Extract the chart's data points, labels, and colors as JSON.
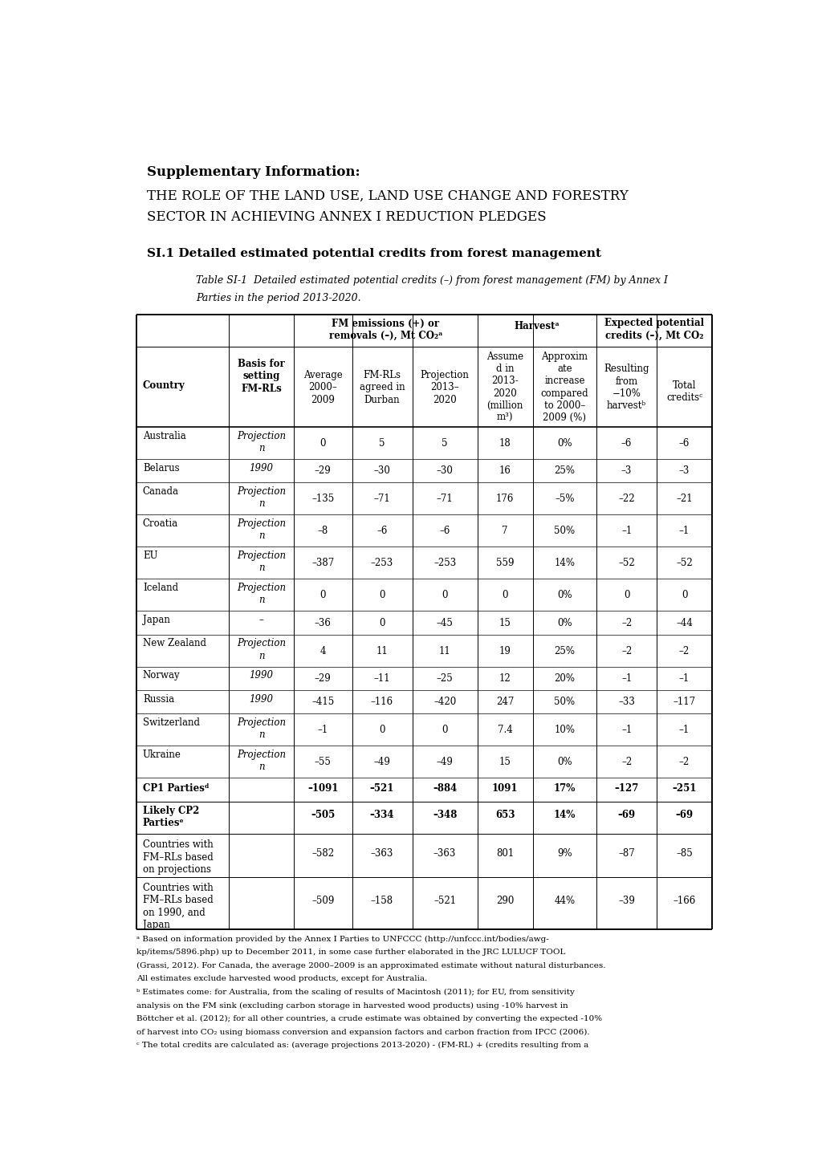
{
  "title_bold": "Supplementary Information:",
  "title_normal": "THE ROLE OF THE LAND USE, LAND USE CHANGE AND FORESTRY\nSECTOR IN ACHIEVING ANNEX I REDUCTION PLEDGES",
  "section_title": "SI.1 Detailed estimated potential credits from forest management",
  "table_caption_line1": "Table SI-1  Detailed estimated potential credits (–) from forest management (FM) by Annex I",
  "table_caption_line2": "Parties in the period 2013-2020.",
  "footnotes": [
    "ᵃ Based on information provided by the Annex I Parties to UNFCCC (http://unfccc.int/bodies/awg-",
    "kp/items/5896.php) up to December 2011, in some case further elaborated in the JRC LULUCF TOOL",
    "(Grassi, 2012). For Canada, the average 2000–2009 is an approximated estimate without natural disturbances.",
    "All estimates exclude harvested wood products, except for Australia.",
    "ᵇ Estimates come: for Australia, from the scaling of results of Macintosh (2011); for EU, from sensitivity",
    "analysis on the FM sink (excluding carbon storage in harvested wood products) using -10% harvest in",
    "Böttcher et al. (2012); for all other countries, a crude estimate was obtained by converting the expected -10%",
    "of harvest into CO₂ using biomass conversion and expansion factors and carbon fraction from IPCC (2006).",
    "ᶜ The total credits are calculated as: (average projections 2013-2020) - (FM-RL) + (credits resulting from a"
  ],
  "background": "#ffffff",
  "text_color": "#000000"
}
